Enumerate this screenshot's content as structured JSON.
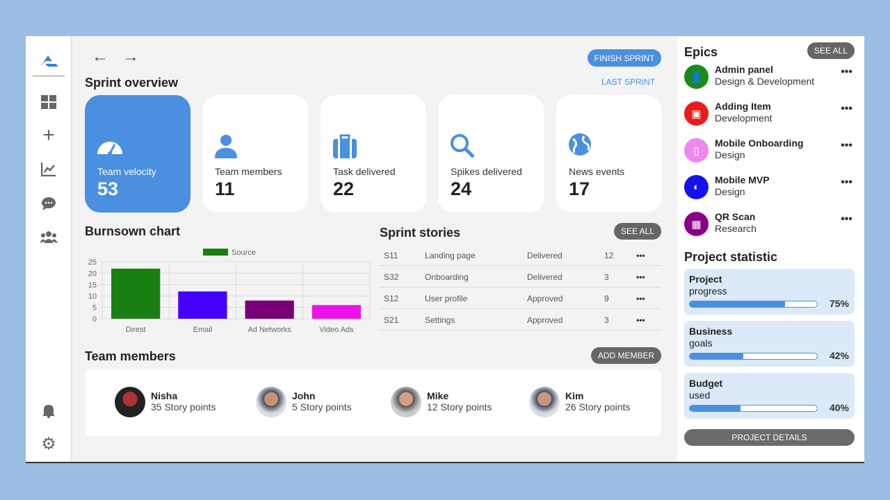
{
  "nav": {
    "back": "←",
    "forward": "→"
  },
  "header": {
    "finish_sprint": "FINISH SPRINT",
    "last_sprint": "LAST SPRINT",
    "title": "Sprint overview"
  },
  "overview": [
    {
      "label": "Team velocity",
      "value": "53",
      "icon": "speedometer-icon"
    },
    {
      "label": "Team members",
      "value": "11",
      "icon": "person-icon"
    },
    {
      "label": "Task delivered",
      "value": "22",
      "icon": "briefcase-icon"
    },
    {
      "label": "Spikes delivered",
      "value": "24",
      "icon": "search-icon"
    },
    {
      "label": "News events",
      "value": "17",
      "icon": "globe-icon"
    }
  ],
  "burndown": {
    "title": "Burnsown chart"
  },
  "chart_data": {
    "type": "bar",
    "categories": [
      "Direst",
      "Email",
      "Ad Networks",
      "Video Ads"
    ],
    "series": [
      {
        "name": "Source",
        "values": [
          22,
          12,
          8,
          6
        ]
      }
    ],
    "colors": [
      "#1a7f12",
      "#4400ff",
      "#7a0078",
      "#ee11ee"
    ],
    "legend_color": "#1a7f12",
    "ylim": [
      0,
      25
    ],
    "yticks": [
      "0",
      "5",
      "10",
      "15",
      "20",
      "25"
    ],
    "grid": true,
    "legend": "top"
  },
  "stories": {
    "title": "Sprint stories",
    "see_all": "SEE ALL",
    "rows": [
      {
        "id": "S11",
        "name": "Landing page",
        "status": "Delivered",
        "points": "12"
      },
      {
        "id": "S32",
        "name": "Onboarding",
        "status": "Delivered",
        "points": "3"
      },
      {
        "id": "S12",
        "name": "User profile",
        "status": "Approved",
        "points": "9"
      },
      {
        "id": "S21",
        "name": "Settings",
        "status": "Approved",
        "points": "3"
      }
    ],
    "more": "•••"
  },
  "team": {
    "title": "Team members",
    "add": "ADD MEMBER",
    "members": [
      {
        "name": "Nisha",
        "points": "35 Story points"
      },
      {
        "name": "John",
        "points": "5 Story points"
      },
      {
        "name": "Mike",
        "points": "12 Story points"
      },
      {
        "name": "Kim",
        "points": "26 Story points"
      }
    ]
  },
  "epics": {
    "title": "Epics",
    "see_all": "SEE ALL",
    "items": [
      {
        "name": "Admin panel",
        "sub": "Design & Development",
        "color": "#1a8a1a"
      },
      {
        "name": "Adding Item",
        "sub": "Development",
        "color": "#e81c1c"
      },
      {
        "name": "Mobile Onboarding",
        "sub": "Design",
        "color": "#ee88ee"
      },
      {
        "name": "Mobile MVP",
        "sub": "Design",
        "color": "#1212ee"
      },
      {
        "name": "QR Scan",
        "sub": "Research",
        "color": "#880088"
      }
    ],
    "more": "•••"
  },
  "stats": {
    "title": "Project statistic",
    "items": [
      {
        "line1": "Project",
        "line2": "progress",
        "percent": 75,
        "label": "75%"
      },
      {
        "line1": "Business",
        "line2": "goals",
        "percent": 42,
        "label": "42%"
      },
      {
        "line1": "Budget",
        "line2": "used",
        "percent": 40,
        "label": "40%"
      }
    ],
    "details": "PROJECT DETAILS"
  }
}
